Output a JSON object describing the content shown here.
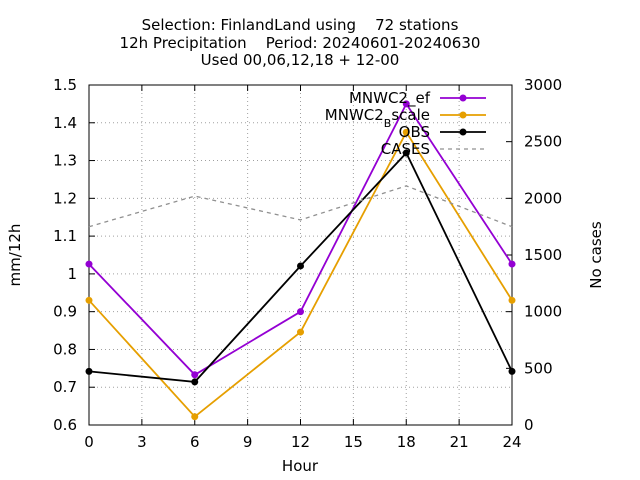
{
  "chart_data": {
    "type": "line",
    "title_lines": [
      "Selection: FinlandLand using    72 stations",
      "12h Precipitation    Period: 20240601-20240630",
      "Used 00,06,12,18 + 12-00"
    ],
    "xlabel": "Hour",
    "ylabel": "mm/12h",
    "y2label": "No cases",
    "x": [
      0,
      6,
      12,
      18,
      24
    ],
    "xlim": [
      0,
      24
    ],
    "xticks": [
      0,
      3,
      6,
      9,
      12,
      15,
      18,
      21,
      24
    ],
    "ylim": [
      0.6,
      1.5
    ],
    "yticks": [
      0.6,
      0.7,
      0.8,
      0.9,
      1.0,
      1.1,
      1.2,
      1.3,
      1.4,
      1.5
    ],
    "ytick_labels": [
      "0.6",
      "0.7",
      "0.8",
      "0.9",
      "1",
      "1.1",
      "1.2",
      "1.3",
      "1.4",
      "1.5"
    ],
    "y2lim": [
      0,
      3000
    ],
    "y2ticks": [
      0,
      500,
      1000,
      1500,
      2000,
      2500,
      3000
    ],
    "grid": true,
    "legend_position": "top-right",
    "series": [
      {
        "name": "MNWC2_ef",
        "legend_main": "MNWC2_ef",
        "legend_sub": "",
        "legend_suffix": "",
        "axis": "left",
        "color": "#9400d3",
        "marker": true,
        "dashed": false,
        "values": [
          1.026,
          0.733,
          0.9,
          1.45,
          1.026
        ]
      },
      {
        "name": "MNWC2_Bscale",
        "legend_main": "MNWC2",
        "legend_sub": "B",
        "legend_suffix": "scale",
        "axis": "left",
        "color": "#e69f00",
        "marker": true,
        "dashed": false,
        "values": [
          0.93,
          0.622,
          0.846,
          1.375,
          0.93
        ]
      },
      {
        "name": "OBS",
        "legend_main": "OBS",
        "legend_sub": "",
        "legend_suffix": "",
        "axis": "left",
        "color": "#000000",
        "marker": true,
        "dashed": false,
        "values": [
          0.742,
          0.714,
          1.021,
          1.32,
          0.742
        ]
      },
      {
        "name": "CASES",
        "legend_main": "CASES",
        "legend_sub": "",
        "legend_suffix": "",
        "axis": "right",
        "color": "#909090",
        "marker": false,
        "dashed": true,
        "values": [
          1750,
          2020,
          1810,
          2110,
          1750
        ]
      }
    ]
  }
}
